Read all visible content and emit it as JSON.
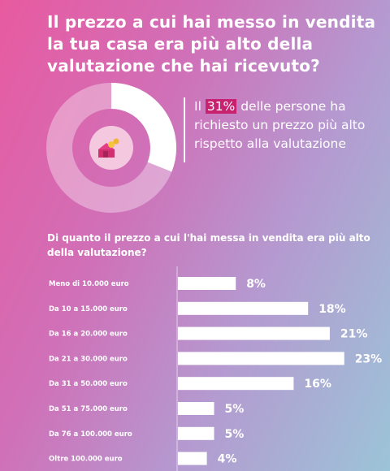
{
  "header": {
    "title": "Il prezzo a cui hai messo in vendita la tua casa era più alto della valutazione che hai ricevuto?"
  },
  "donut": {
    "value_pct": 31,
    "icon": "house-with-coins-icon"
  },
  "stat": {
    "prefix": "Il",
    "highlight": "31%",
    "text": "delle persone ha richiesto un prezzo più alto rispetto alla valutazione"
  },
  "colors": {
    "highlight": "#c8216f",
    "bar": "#ffffff"
  },
  "chart_data": {
    "type": "bar",
    "orientation": "horizontal",
    "title": "Di quanto il prezzo a cui l'hai messa in vendita era più alto della valutazione?",
    "categories": [
      "Meno di 10.000 euro",
      "Da 10 a 15.000 euro",
      "Da 16 a 20.000 euro",
      "Da 21 a 30.000 euro",
      "Da 31 a 50.000 euro",
      "Da 51 a 75.000 euro",
      "Da 76 a 100.000 euro",
      "Oltre 100.000 euro"
    ],
    "values": [
      8,
      18,
      21,
      23,
      16,
      5,
      5,
      4
    ],
    "value_labels": [
      "8%",
      "18%",
      "21%",
      "23%",
      "16%",
      "5%",
      "5%",
      "4%"
    ],
    "unit": "%",
    "grid": false
  }
}
